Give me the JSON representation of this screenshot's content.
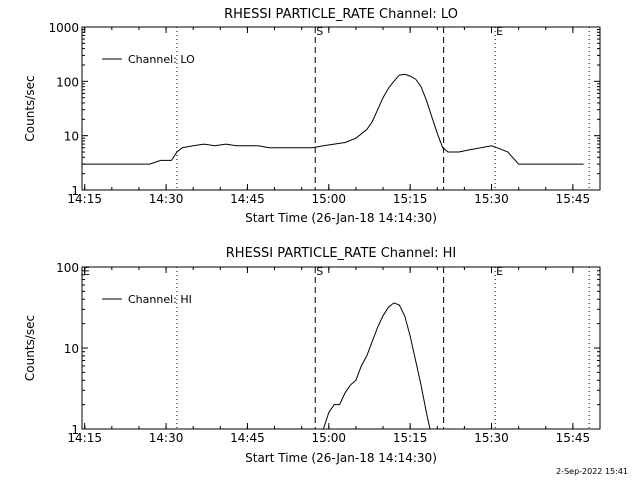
{
  "footer": {
    "timestamp": "2-Sep-2022 15:41"
  },
  "chart_data": [
    {
      "type": "line",
      "title": "RHESSI PARTICLE_RATE Channel: LO",
      "xlabel": "Start Time (26-Jan-18 14:14:30)",
      "ylabel": "Counts/sec",
      "yscale": "log",
      "ylim": [
        1,
        1000
      ],
      "xlim": [
        "14:14:30",
        "15:50:00"
      ],
      "x_ticks": [
        "14:15",
        "14:30",
        "14:45",
        "15:00",
        "15:15",
        "15:30",
        "15:45"
      ],
      "y_ticks": [
        "1",
        "10",
        "100",
        "1000"
      ],
      "legend": {
        "position": "top-left",
        "entries": [
          "Channel: LO"
        ]
      },
      "vlines": [
        {
          "time": "14:32:00",
          "style": "dotted",
          "label": ""
        },
        {
          "time": "14:57:30",
          "style": "dashed",
          "label": "S"
        },
        {
          "time": "15:21:10",
          "style": "dashed",
          "label": ""
        },
        {
          "time": "15:30:40",
          "style": "dotted",
          "label": "E"
        },
        {
          "time": "15:48:00",
          "style": "dotted",
          "label": ""
        }
      ],
      "series": [
        {
          "name": "Channel: LO",
          "x": [
            "14:14:30",
            "14:17:00",
            "14:19:00",
            "14:21:00",
            "14:23:00",
            "14:25:00",
            "14:27:00",
            "14:29:00",
            "14:31:00",
            "14:32:00",
            "14:33:00",
            "14:35:00",
            "14:37:00",
            "14:39:00",
            "14:41:00",
            "14:43:00",
            "14:45:00",
            "14:47:00",
            "14:49:00",
            "14:51:00",
            "14:53:00",
            "14:55:00",
            "14:57:00",
            "14:59:00",
            "15:01:00",
            "15:03:00",
            "15:05:00",
            "15:07:00",
            "15:08:00",
            "15:09:00",
            "15:10:00",
            "15:11:00",
            "15:12:00",
            "15:13:00",
            "15:14:00",
            "15:15:00",
            "15:16:00",
            "15:17:00",
            "15:18:00",
            "15:19:00",
            "15:20:00",
            "15:21:00",
            "15:22:00",
            "15:24:00",
            "15:26:00",
            "15:28:00",
            "15:30:00",
            "15:31:00",
            "15:32:00",
            "15:33:00",
            "15:35:00",
            "15:37:00",
            "15:39:00",
            "15:41:00",
            "15:43:00",
            "15:45:00",
            "15:47:00"
          ],
          "y": [
            3,
            3,
            3,
            3,
            3,
            3,
            3,
            3.5,
            3.5,
            5,
            6,
            6.5,
            7,
            6.5,
            7,
            6.5,
            6.5,
            6.5,
            6,
            6,
            6,
            6,
            6,
            6.5,
            7,
            7.5,
            9,
            13,
            18,
            30,
            50,
            75,
            100,
            130,
            135,
            125,
            110,
            80,
            45,
            22,
            11,
            6,
            5,
            5,
            5.5,
            6,
            6.5,
            6,
            5.5,
            5,
            3,
            3,
            3,
            3,
            3,
            3,
            3
          ]
        }
      ]
    },
    {
      "type": "line",
      "title": "RHESSI PARTICLE_RATE Channel: HI",
      "xlabel": "Start Time (26-Jan-18 14:14:30)",
      "ylabel": "Counts/sec",
      "yscale": "log",
      "ylim": [
        1,
        100
      ],
      "xlim": [
        "14:14:30",
        "15:50:00"
      ],
      "x_ticks": [
        "14:15",
        "14:30",
        "14:45",
        "15:00",
        "15:15",
        "15:30",
        "15:45"
      ],
      "y_ticks": [
        "1",
        "10",
        "100"
      ],
      "legend": {
        "position": "top-left",
        "entries": [
          "Channel: HI"
        ]
      },
      "vlines": [
        {
          "time": "14:32:00",
          "style": "dotted",
          "label": ""
        },
        {
          "time": "14:57:30",
          "style": "dashed",
          "label": "S"
        },
        {
          "time": "15:21:10",
          "style": "dashed",
          "label": ""
        },
        {
          "time": "15:30:40",
          "style": "dotted",
          "label": "E"
        },
        {
          "time": "15:48:00",
          "style": "dotted",
          "label": ""
        }
      ],
      "edge_labels": [
        "E"
      ],
      "series": [
        {
          "name": "Channel: HI",
          "x": [
            "14:59:00",
            "15:00:00",
            "15:01:00",
            "15:02:00",
            "15:03:00",
            "15:04:00",
            "15:05:00",
            "15:06:00",
            "15:07:00",
            "15:08:00",
            "15:09:00",
            "15:10:00",
            "15:11:00",
            "15:12:00",
            "15:13:00",
            "15:14:00",
            "15:15:00",
            "15:16:00",
            "15:17:00",
            "15:18:00",
            "15:18:40"
          ],
          "y": [
            1,
            1.6,
            2,
            2,
            2.8,
            3.5,
            4,
            6,
            8,
            12,
            18,
            25,
            32,
            36,
            34,
            25,
            14,
            7,
            3.5,
            1.6,
            1
          ]
        }
      ]
    }
  ]
}
